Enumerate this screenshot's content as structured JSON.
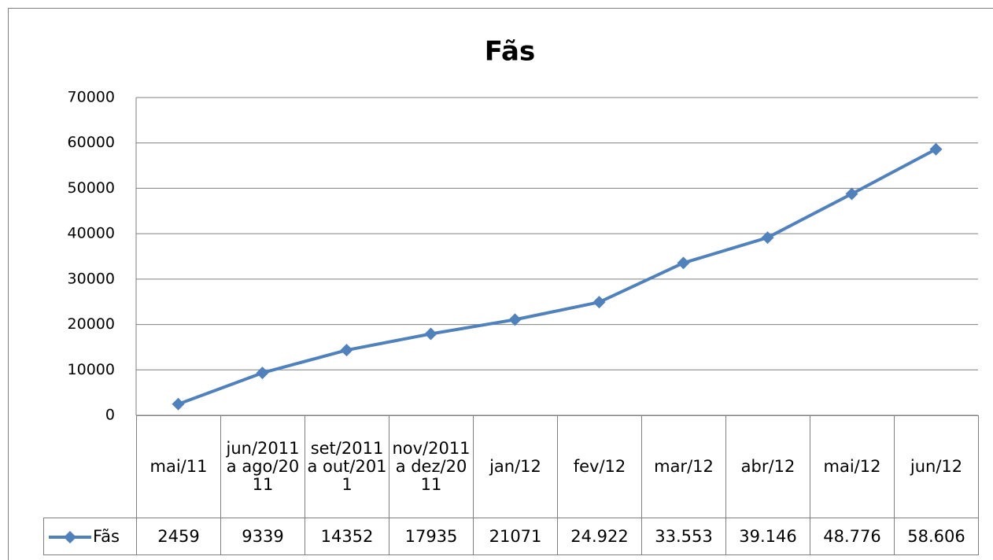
{
  "chart_data": {
    "type": "line",
    "title": "Fãs",
    "categories": [
      "mai/11",
      "jun/2011 a ago/2011",
      "set/2011 a out/2011",
      "nov/2011 a dez/2011",
      "jan/12",
      "fev/12",
      "mar/12",
      "abr/12",
      "mai/12",
      "jun/12"
    ],
    "series": [
      {
        "name": "Fãs",
        "color": "#4f81bd",
        "values": [
          2459,
          9339,
          14352,
          17935,
          21071,
          24922,
          33553,
          39146,
          48776,
          58606
        ],
        "value_labels": [
          "2459",
          "9339",
          "14352",
          "17935",
          "21071",
          "24.922",
          "33.553",
          "39.146",
          "48.776",
          "58.606"
        ]
      }
    ],
    "ylim": [
      0,
      70000
    ],
    "yticks": [
      0,
      10000,
      20000,
      30000,
      40000,
      50000,
      60000,
      70000
    ],
    "grid": true
  }
}
